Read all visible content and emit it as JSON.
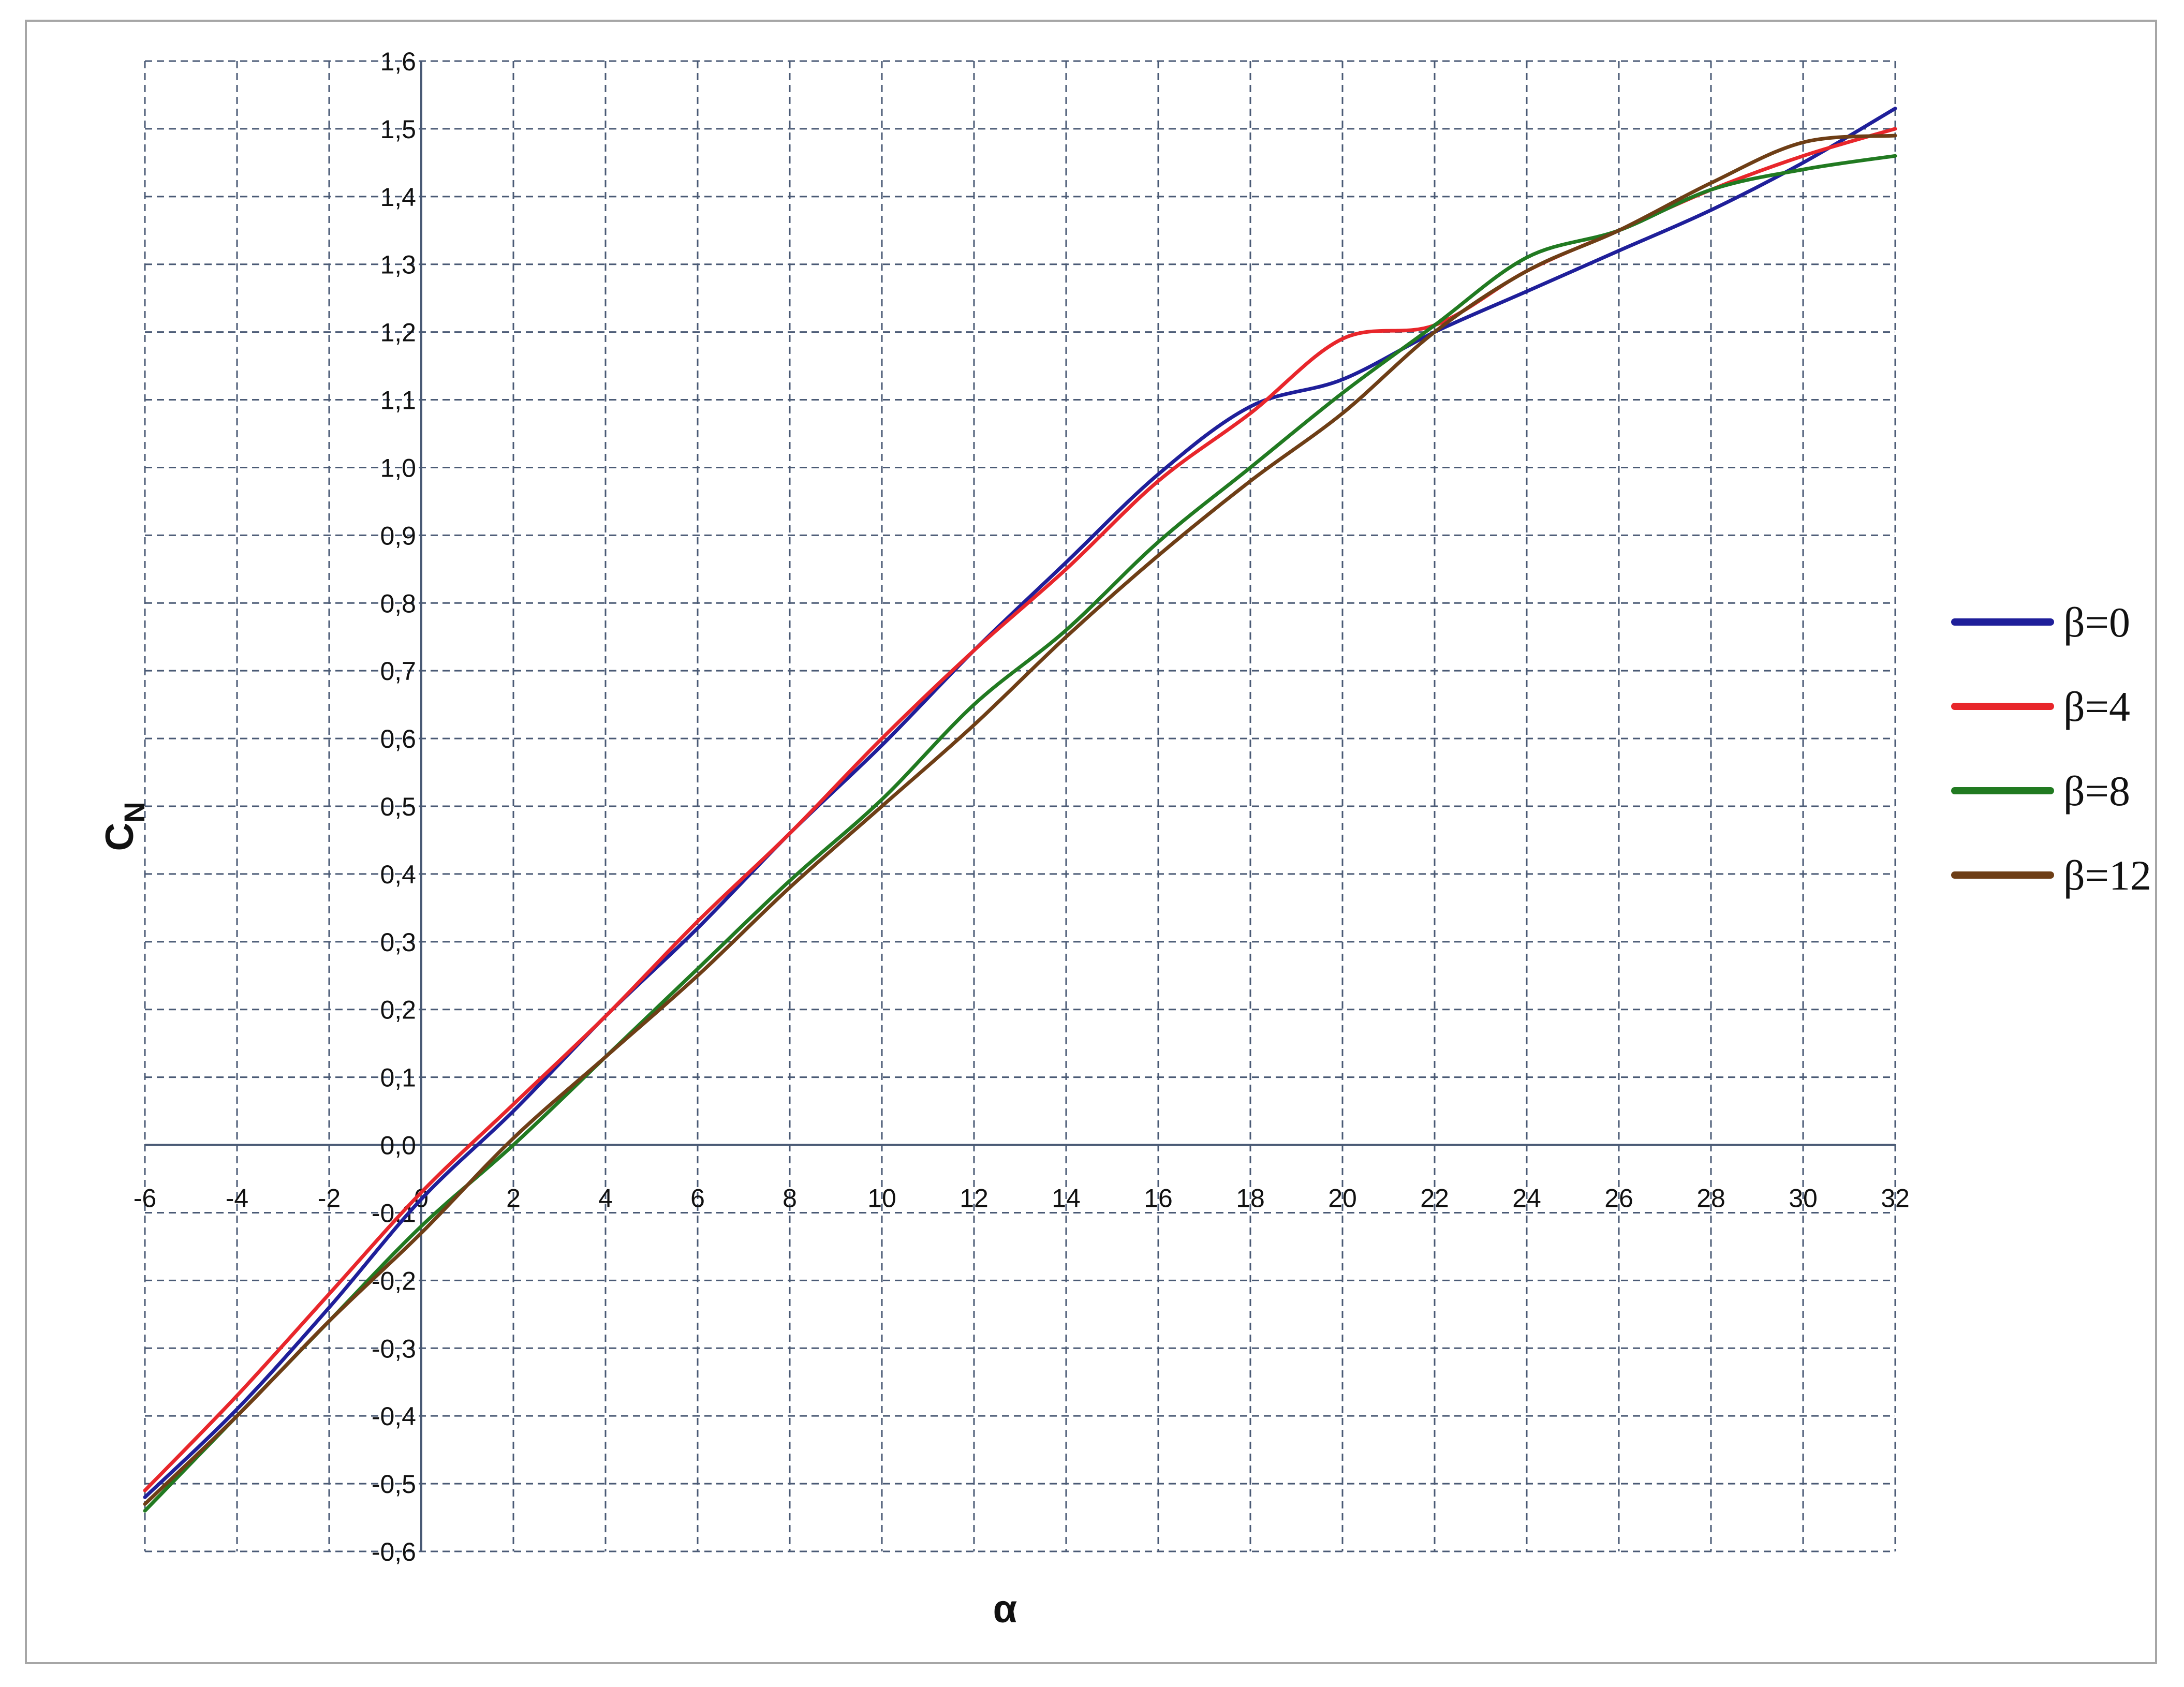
{
  "chart_data": {
    "type": "line",
    "xlabel": "α",
    "ylabel": {
      "main": "C",
      "sub": "N"
    },
    "xlim": [
      -6,
      32
    ],
    "ylim": [
      -0.6,
      1.6
    ],
    "xticks": [
      -6,
      -4,
      -2,
      0,
      2,
      4,
      6,
      8,
      10,
      12,
      14,
      16,
      18,
      20,
      22,
      24,
      26,
      28,
      30,
      32
    ],
    "xtick_labels": [
      "-6",
      "-4",
      "-2",
      "0",
      "2",
      "4",
      "6",
      "8",
      "10",
      "12",
      "14",
      "16",
      "18",
      "20",
      "22",
      "24",
      "26",
      "28",
      "30",
      "32"
    ],
    "yticks": [
      -0.6,
      -0.5,
      -0.4,
      -0.3,
      -0.2,
      -0.1,
      0.0,
      0.1,
      0.2,
      0.3,
      0.4,
      0.5,
      0.6,
      0.7,
      0.8,
      0.9,
      1.0,
      1.1,
      1.2,
      1.3,
      1.4,
      1.5,
      1.6
    ],
    "ytick_labels": [
      "-0,6",
      "-0,5",
      "-0,4",
      "-0,3",
      "-0,2",
      "-0,1",
      "0,0",
      "0,1",
      "0,2",
      "0,3",
      "0,4",
      "0,5",
      "0,6",
      "0,7",
      "0,8",
      "0,9",
      "1,0",
      "1,1",
      "1,2",
      "1,3",
      "1,4",
      "1,5",
      "1,6"
    ],
    "grid": true,
    "grid_style": "dashed",
    "legend_position": "right",
    "series": [
      {
        "name": "β=0",
        "color": "#1f1f9a",
        "x": [
          -6,
          -4,
          -2,
          0,
          2,
          4,
          6,
          8,
          10,
          12,
          14,
          16,
          18,
          20,
          22,
          24,
          26,
          28,
          30,
          32
        ],
        "y": [
          -0.52,
          -0.39,
          -0.24,
          -0.08,
          0.05,
          0.19,
          0.32,
          0.46,
          0.59,
          0.73,
          0.86,
          0.99,
          1.09,
          1.13,
          1.2,
          1.26,
          1.32,
          1.38,
          1.45,
          1.53
        ]
      },
      {
        "name": "β=4",
        "color": "#e8262b",
        "x": [
          -6,
          -4,
          -2,
          0,
          2,
          4,
          6,
          8,
          10,
          12,
          14,
          16,
          18,
          20,
          22,
          24,
          26,
          28,
          30,
          32
        ],
        "y": [
          -0.51,
          -0.37,
          -0.22,
          -0.07,
          0.06,
          0.19,
          0.33,
          0.46,
          0.6,
          0.73,
          0.85,
          0.98,
          1.08,
          1.19,
          1.21,
          1.29,
          1.35,
          1.41,
          1.46,
          1.5
        ]
      },
      {
        "name": "β=8",
        "color": "#217a21",
        "x": [
          -6,
          -4,
          -2,
          0,
          2,
          4,
          6,
          8,
          10,
          12,
          14,
          16,
          18,
          20,
          22,
          24,
          26,
          28,
          30,
          32
        ],
        "y": [
          -0.54,
          -0.4,
          -0.26,
          -0.12,
          0.0,
          0.13,
          0.26,
          0.39,
          0.51,
          0.65,
          0.76,
          0.89,
          1.0,
          1.11,
          1.21,
          1.31,
          1.35,
          1.41,
          1.44,
          1.46
        ]
      },
      {
        "name": "β=12",
        "color": "#6e3e16",
        "x": [
          -6,
          -4,
          -2,
          0,
          2,
          4,
          6,
          8,
          10,
          12,
          14,
          16,
          18,
          20,
          22,
          24,
          26,
          28,
          30,
          32
        ],
        "y": [
          -0.53,
          -0.4,
          -0.26,
          -0.13,
          0.01,
          0.13,
          0.25,
          0.38,
          0.5,
          0.62,
          0.75,
          0.87,
          0.98,
          1.08,
          1.2,
          1.29,
          1.35,
          1.42,
          1.48,
          1.49
        ]
      }
    ]
  }
}
